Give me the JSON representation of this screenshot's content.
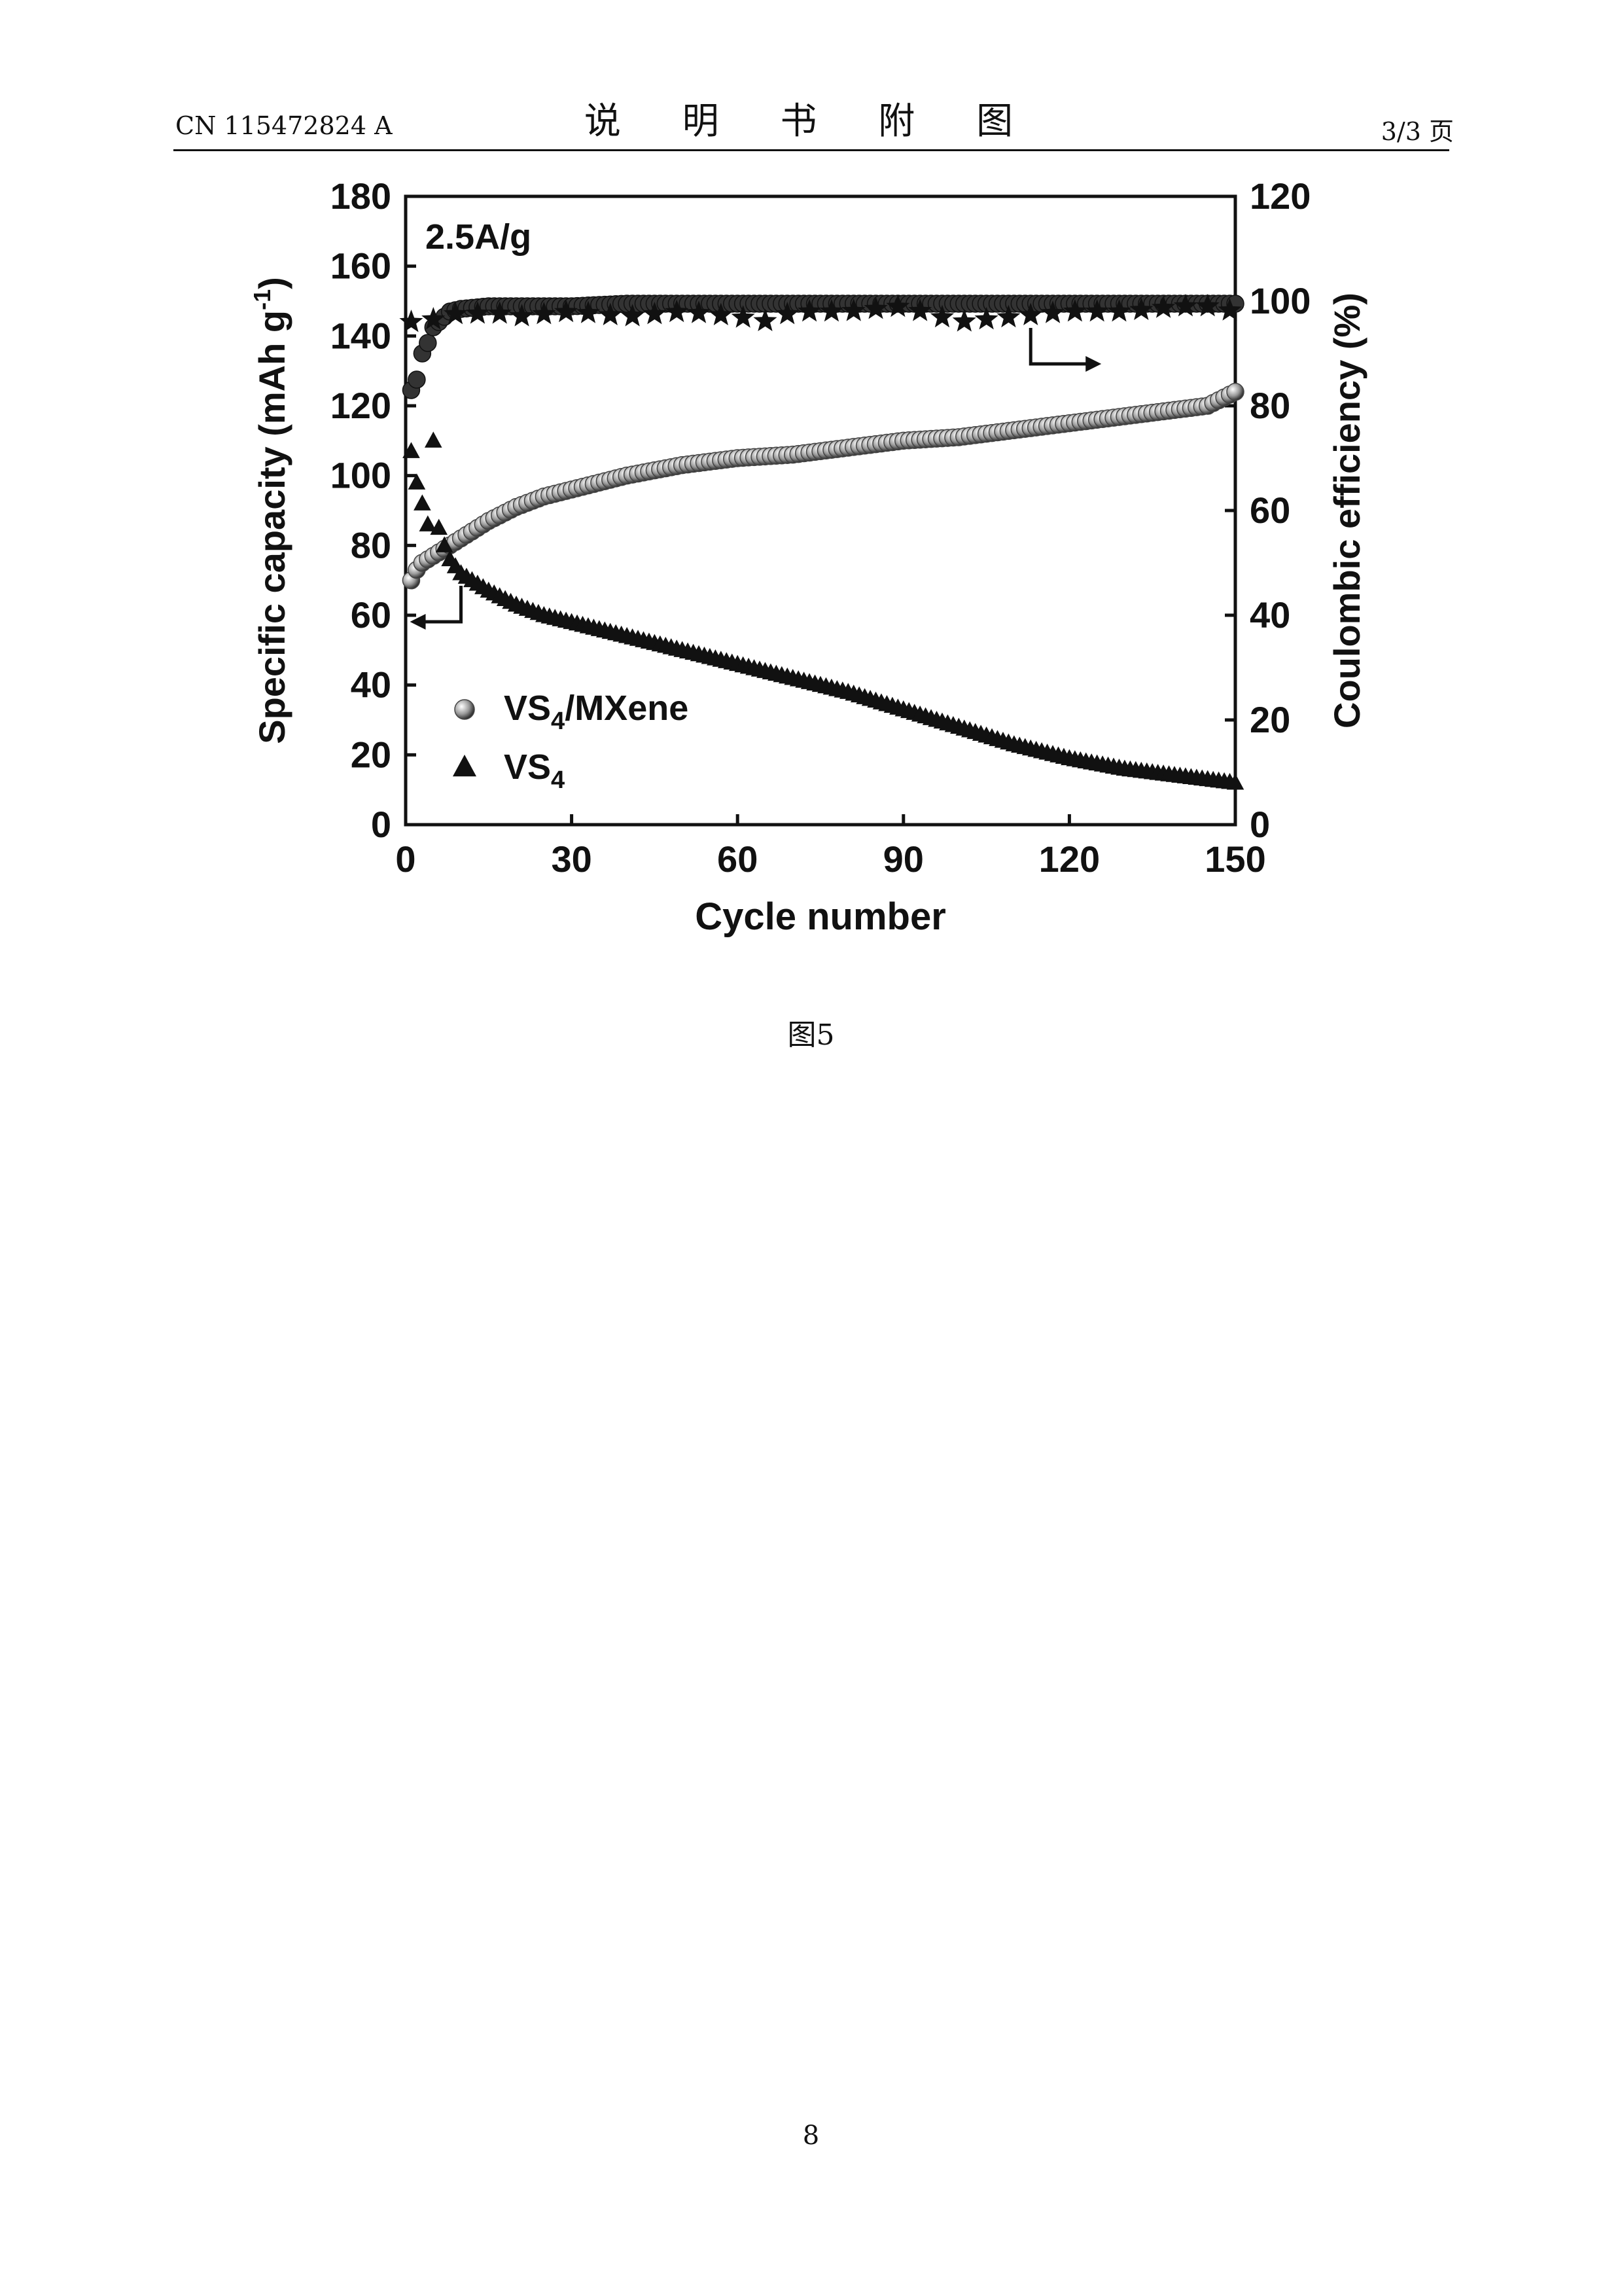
{
  "header": {
    "left": "CN 115472824 A",
    "center": "说 明 书 附 图",
    "right": "3/3 页"
  },
  "caption": "图5",
  "page_number": "8",
  "chart_data": {
    "type": "scatter",
    "annotation": "2.5A/g",
    "xlabel": "Cycle number",
    "ylabel_left": "Specific capacity (mAh g⁻¹)",
    "ylabel_right": "Coulombic efficiency (%)",
    "xlim": [
      0,
      150
    ],
    "ylim_left": [
      0,
      180
    ],
    "ylim_right": [
      0,
      120
    ],
    "xticks": [
      0,
      30,
      60,
      90,
      120,
      150
    ],
    "yticks_left": [
      0,
      20,
      40,
      60,
      80,
      100,
      120,
      140,
      160,
      180
    ],
    "yticks_right": [
      0,
      20,
      40,
      60,
      80,
      100,
      120
    ],
    "legend_position": "lower-left",
    "legend": [
      "VS4/MXene",
      "VS4"
    ],
    "series": [
      {
        "name": "VS4/MXene",
        "axis": "left",
        "marker": "shaded-circle",
        "x": [
          1,
          2,
          3,
          5,
          8,
          10,
          15,
          20,
          25,
          30,
          40,
          50,
          60,
          70,
          80,
          90,
          100,
          110,
          120,
          130,
          140,
          145,
          150
        ],
        "y": [
          70,
          73,
          75,
          77,
          80,
          82,
          87,
          91,
          94,
          96,
          100,
          103,
          105,
          106,
          108,
          110,
          111,
          113,
          115,
          117,
          119,
          120,
          124
        ]
      },
      {
        "name": "VS4",
        "axis": "left",
        "marker": "triangle",
        "x": [
          1,
          2,
          3,
          4,
          5,
          6,
          7,
          8,
          10,
          15,
          20,
          25,
          30,
          40,
          50,
          60,
          70,
          80,
          90,
          100,
          110,
          120,
          130,
          140,
          145,
          150
        ],
        "y": [
          107,
          98,
          92,
          86,
          110,
          85,
          80,
          76,
          72,
          67,
          63,
          60,
          58,
          54,
          50,
          46,
          42,
          38,
          33,
          28,
          23,
          19,
          16,
          14,
          13,
          12
        ]
      },
      {
        "name": "VS4/MXene efficiency",
        "axis": "right",
        "marker": "circle",
        "x": [
          1,
          2,
          3,
          4,
          5,
          6,
          7,
          8,
          10,
          15,
          20,
          30,
          40,
          50,
          60,
          70,
          80,
          90,
          100,
          110,
          120,
          130,
          140,
          145,
          150
        ],
        "y": [
          83,
          85,
          90,
          92,
          95,
          96,
          97,
          98,
          98.5,
          99,
          99,
          99,
          99.5,
          99.5,
          99.5,
          99.5,
          99.5,
          99.5,
          99.5,
          99.5,
          99.5,
          99.5,
          99.5,
          99.5,
          99.5
        ]
      },
      {
        "name": "VS4 efficiency",
        "axis": "right",
        "marker": "star",
        "x": [
          1,
          2,
          3,
          4,
          6,
          8,
          10,
          15,
          20,
          30,
          40,
          50,
          60,
          66,
          70,
          80,
          90,
          100,
          110,
          120,
          130,
          140,
          145,
          150
        ],
        "y": [
          96,
          100,
          99,
          97,
          96,
          98,
          97,
          98,
          97,
          98,
          97,
          98,
          97,
          96,
          98,
          98,
          99,
          96,
          97,
          98,
          98,
          99,
          99,
          98
        ]
      }
    ]
  }
}
